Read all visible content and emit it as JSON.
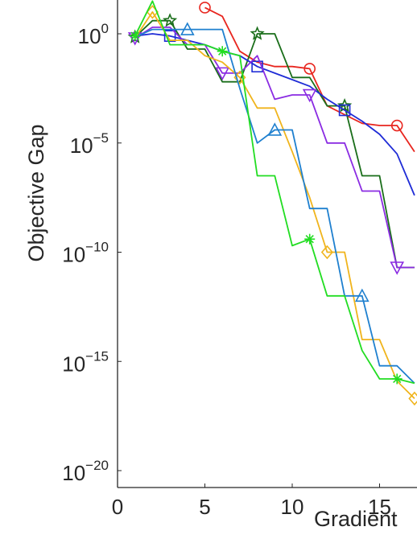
{
  "chart_data": {
    "type": "line",
    "xlabel": "Gradient",
    "ylabel": "Objective Gap",
    "yscale": "log",
    "xlim": [
      0,
      17
    ],
    "ylim_exponent": [
      -20,
      1.5
    ],
    "x_ticks": [
      0,
      5,
      10,
      15
    ],
    "y_tick_exponents": [
      0,
      -5,
      -10,
      -15,
      -20
    ],
    "y_tick_base": "10",
    "grid": false,
    "series": [
      {
        "color": "#e8261f",
        "marker": "circle",
        "marker_x": [
          5,
          11,
          16
        ],
        "x": [
          5,
          6,
          7,
          8,
          9,
          10,
          11,
          12,
          13,
          14,
          15,
          16,
          17
        ],
        "log10_y": [
          1.2,
          0.8,
          -0.8,
          -1.3,
          -1.5,
          -1.5,
          -1.6,
          -3.3,
          -3.7,
          -4.1,
          -4.2,
          -4.2,
          -5.4
        ]
      },
      {
        "color": "#1a6e1a",
        "marker": "pentagram",
        "marker_x": [
          1,
          3,
          8,
          13
        ],
        "x": [
          1,
          2,
          3,
          4,
          5,
          6,
          7,
          8,
          9,
          10,
          11,
          12,
          13,
          14,
          15,
          16,
          17
        ],
        "log10_y": [
          -0.15,
          0.6,
          0.6,
          -0.7,
          -0.7,
          -2.2,
          -2.2,
          0,
          0,
          -2,
          -2,
          -3.3,
          -3.3,
          -6.5,
          -6.5,
          -10.7,
          -10.7
        ]
      },
      {
        "color": "#1f2cd6",
        "marker": "square",
        "marker_x": [
          3,
          8,
          13
        ],
        "x": [
          1,
          2,
          3,
          4,
          5,
          6,
          7,
          8,
          9,
          10,
          11,
          12,
          13,
          14,
          15,
          16,
          17
        ],
        "log10_y": [
          -0.1,
          0,
          -0.1,
          -0.3,
          -0.5,
          -0.8,
          -1.0,
          -1.5,
          -1.8,
          -2.1,
          -2.4,
          -3.0,
          -3.5,
          -4.0,
          -4.6,
          -5.5,
          -7.4
        ]
      },
      {
        "color": "#8a2be2",
        "marker": "triangle-down",
        "marker_x": [
          1,
          6,
          11,
          16
        ],
        "x": [
          1,
          2,
          3,
          4,
          5,
          6,
          7,
          8,
          9,
          10,
          11,
          12,
          13,
          14,
          15,
          16,
          17
        ],
        "log10_y": [
          -0.2,
          0.3,
          0.3,
          -0.5,
          -0.5,
          -1.8,
          -1.8,
          -1.0,
          -3.0,
          -2.8,
          -2.8,
          -5.0,
          -5.0,
          -7.2,
          -7.2,
          -10.7,
          -10.7
        ]
      },
      {
        "color": "#f0b41c",
        "marker": "diamond",
        "marker_x": [
          2,
          7,
          12,
          17
        ],
        "x": [
          1,
          2,
          3,
          4,
          5,
          6,
          7,
          8,
          9,
          10,
          11,
          12,
          13,
          14,
          15,
          16,
          17
        ],
        "log10_y": [
          -0.2,
          1.0,
          -0.3,
          -0.3,
          -1.0,
          -1.3,
          -2.0,
          -3.4,
          -3.4,
          -5.4,
          -7.5,
          -10.0,
          -10.0,
          -14.0,
          -14.0,
          -15.9,
          -16.7
        ]
      },
      {
        "color": "#1f80cf",
        "marker": "triangle-up",
        "marker_x": [
          4,
          9,
          14
        ],
        "x": [
          1,
          2,
          3,
          4,
          5,
          6,
          7,
          8,
          9,
          10,
          11,
          12,
          13,
          14,
          15,
          16,
          17
        ],
        "log10_y": [
          -0.15,
          0.2,
          0.2,
          0.2,
          0.2,
          0.2,
          -2.5,
          -5.0,
          -4.4,
          -4.4,
          -8.0,
          -8.0,
          -12.0,
          -12.0,
          -15.2,
          -15.2,
          -16.0
        ]
      },
      {
        "color": "#22dd22",
        "marker": "asterisk",
        "marker_x": [
          1,
          6,
          11,
          16
        ],
        "x": [
          1,
          2,
          3,
          4,
          5,
          6,
          7,
          8,
          9,
          10,
          11,
          12,
          13,
          14,
          15,
          16,
          17
        ],
        "log10_y": [
          -0.1,
          1.5,
          -0.5,
          -0.5,
          -0.5,
          -0.8,
          -1.0,
          -6.5,
          -6.5,
          -9.7,
          -9.4,
          -12.0,
          -12.0,
          -14.5,
          -15.8,
          -15.8,
          -16.0
        ]
      }
    ]
  }
}
